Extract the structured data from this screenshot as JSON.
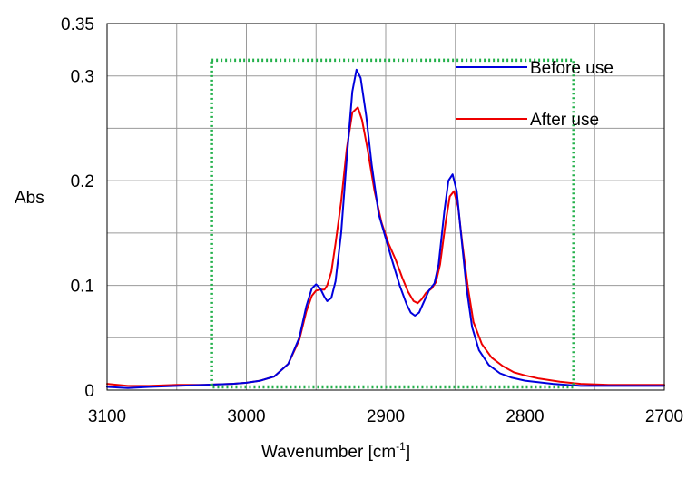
{
  "chart_data": {
    "type": "line",
    "title": "",
    "xlabel": "Wavenumber [cm",
    "xlabel_superscript": "-1",
    "xlabel_suffix": "]",
    "ylabel": "Abs",
    "xlim": [
      3100,
      2700
    ],
    "ylim": [
      0,
      0.35
    ],
    "x_reversed": true,
    "x_ticks": [
      3100,
      3000,
      2900,
      2800,
      2700
    ],
    "x_tick_labels": [
      "3100",
      "3000",
      "2900",
      "2800",
      "2700"
    ],
    "x_minor_grid": [
      3050,
      2950,
      2850,
      2750
    ],
    "y_ticks": [
      0,
      0.1,
      0.2,
      0.3,
      0.35
    ],
    "y_tick_labels": [
      "0",
      "0.1",
      "0.2",
      "0.3",
      "0.35"
    ],
    "y_minor_grid": [
      0.05,
      0.15,
      0.25
    ],
    "grid": true,
    "legend_position": "top-right",
    "series": [
      {
        "name": "Before use",
        "color": "#0000dd",
        "points": [
          [
            3100,
            0.003
          ],
          [
            3085,
            0.002
          ],
          [
            3070,
            0.003
          ],
          [
            3050,
            0.004
          ],
          [
            3030,
            0.005
          ],
          [
            3010,
            0.006
          ],
          [
            3000,
            0.007
          ],
          [
            2990,
            0.009
          ],
          [
            2980,
            0.013
          ],
          [
            2970,
            0.025
          ],
          [
            2962,
            0.05
          ],
          [
            2957,
            0.08
          ],
          [
            2953,
            0.097
          ],
          [
            2950,
            0.101
          ],
          [
            2947,
            0.097
          ],
          [
            2944,
            0.089
          ],
          [
            2942,
            0.085
          ],
          [
            2939,
            0.088
          ],
          [
            2936,
            0.104
          ],
          [
            2932,
            0.15
          ],
          [
            2928,
            0.22
          ],
          [
            2924,
            0.285
          ],
          [
            2921,
            0.306
          ],
          [
            2918,
            0.298
          ],
          [
            2914,
            0.262
          ],
          [
            2910,
            0.215
          ],
          [
            2905,
            0.168
          ],
          [
            2900,
            0.145
          ],
          [
            2895,
            0.122
          ],
          [
            2890,
            0.1
          ],
          [
            2885,
            0.082
          ],
          [
            2882,
            0.074
          ],
          [
            2879,
            0.071
          ],
          [
            2876,
            0.074
          ],
          [
            2873,
            0.083
          ],
          [
            2869,
            0.095
          ],
          [
            2865,
            0.102
          ],
          [
            2862,
            0.12
          ],
          [
            2858,
            0.17
          ],
          [
            2855,
            0.2
          ],
          [
            2852,
            0.206
          ],
          [
            2849,
            0.19
          ],
          [
            2846,
            0.15
          ],
          [
            2842,
            0.098
          ],
          [
            2838,
            0.06
          ],
          [
            2833,
            0.038
          ],
          [
            2826,
            0.024
          ],
          [
            2818,
            0.016
          ],
          [
            2810,
            0.012
          ],
          [
            2800,
            0.009
          ],
          [
            2780,
            0.006
          ],
          [
            2760,
            0.004
          ],
          [
            2740,
            0.004
          ],
          [
            2720,
            0.004
          ],
          [
            2700,
            0.004
          ]
        ]
      },
      {
        "name": "After use",
        "color": "#ee0000",
        "points": [
          [
            3100,
            0.006
          ],
          [
            3085,
            0.004
          ],
          [
            3070,
            0.004
          ],
          [
            3050,
            0.005
          ],
          [
            3030,
            0.005
          ],
          [
            3010,
            0.006
          ],
          [
            3000,
            0.007
          ],
          [
            2990,
            0.009
          ],
          [
            2980,
            0.013
          ],
          [
            2970,
            0.025
          ],
          [
            2962,
            0.048
          ],
          [
            2957,
            0.075
          ],
          [
            2953,
            0.09
          ],
          [
            2950,
            0.095
          ],
          [
            2947,
            0.096
          ],
          [
            2944,
            0.096
          ],
          [
            2942,
            0.1
          ],
          [
            2939,
            0.113
          ],
          [
            2936,
            0.14
          ],
          [
            2932,
            0.18
          ],
          [
            2928,
            0.23
          ],
          [
            2924,
            0.265
          ],
          [
            2920,
            0.27
          ],
          [
            2917,
            0.258
          ],
          [
            2913,
            0.23
          ],
          [
            2908,
            0.19
          ],
          [
            2903,
            0.16
          ],
          [
            2898,
            0.14
          ],
          [
            2893,
            0.125
          ],
          [
            2888,
            0.107
          ],
          [
            2884,
            0.094
          ],
          [
            2880,
            0.085
          ],
          [
            2877,
            0.083
          ],
          [
            2874,
            0.087
          ],
          [
            2871,
            0.093
          ],
          [
            2867,
            0.097
          ],
          [
            2864,
            0.103
          ],
          [
            2861,
            0.12
          ],
          [
            2857,
            0.16
          ],
          [
            2854,
            0.185
          ],
          [
            2851,
            0.19
          ],
          [
            2848,
            0.175
          ],
          [
            2845,
            0.14
          ],
          [
            2841,
            0.098
          ],
          [
            2837,
            0.065
          ],
          [
            2831,
            0.044
          ],
          [
            2824,
            0.031
          ],
          [
            2816,
            0.023
          ],
          [
            2808,
            0.017
          ],
          [
            2800,
            0.014
          ],
          [
            2790,
            0.011
          ],
          [
            2775,
            0.008
          ],
          [
            2760,
            0.006
          ],
          [
            2740,
            0.005
          ],
          [
            2720,
            0.005
          ],
          [
            2700,
            0.005
          ]
        ]
      }
    ],
    "annotation_box": {
      "style": "dotted",
      "color": "#22b04a",
      "x_range": [
        3025,
        2765
      ],
      "y_range": [
        0.003,
        0.315
      ]
    }
  }
}
